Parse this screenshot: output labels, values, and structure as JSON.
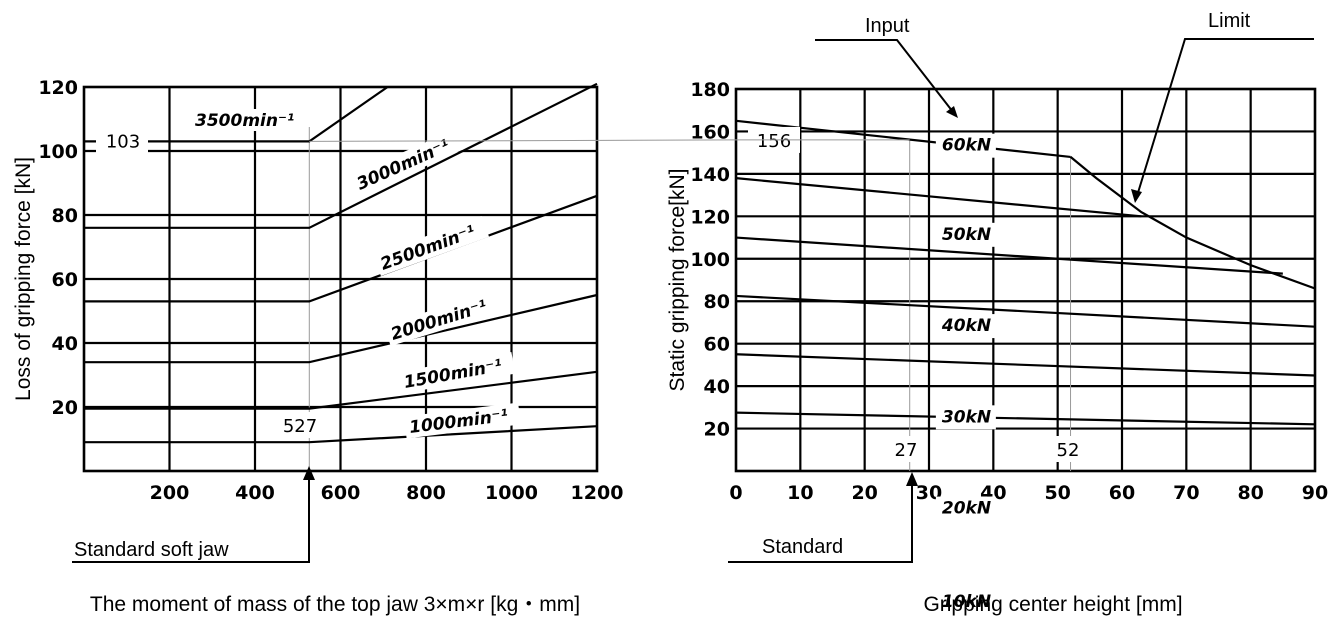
{
  "chart_data": [
    {
      "type": "line",
      "title": "",
      "xlabel": "The moment of mass of the top jaw 3×m×r [kg・mm]",
      "ylabel": "Loss of gripping force [kN]",
      "xlim": [
        0,
        1200
      ],
      "ylim": [
        0,
        120
      ],
      "xticks": [
        200,
        400,
        600,
        800,
        1000,
        1200
      ],
      "yticks": [
        20,
        40,
        60,
        80,
        100,
        120
      ],
      "grid": true,
      "series": [
        {
          "name": "1000min⁻¹",
          "x": [
            0,
            527,
            1200
          ],
          "y": [
            9,
            9,
            14
          ]
        },
        {
          "name": "1500min⁻¹",
          "x": [
            0,
            527,
            1200
          ],
          "y": [
            19.5,
            19.5,
            31
          ]
        },
        {
          "name": "2000min⁻¹",
          "x": [
            0,
            527,
            1200
          ],
          "y": [
            34,
            34,
            55
          ]
        },
        {
          "name": "2500min⁻¹",
          "x": [
            0,
            527,
            1200
          ],
          "y": [
            53,
            53,
            86
          ]
        },
        {
          "name": "3000min⁻¹",
          "x": [
            0,
            527,
            1200
          ],
          "y": [
            76,
            76,
            121
          ]
        },
        {
          "name": "3500min⁻¹",
          "x": [
            0,
            527,
            710
          ],
          "y": [
            103,
            103,
            120
          ]
        }
      ],
      "annotations": {
        "standard_x": 527,
        "standard_x_label": "527",
        "standard_y": 103,
        "standard_y_label": "103",
        "standard_soft_jaw": "Standard soft jaw"
      }
    },
    {
      "type": "line",
      "title": "",
      "xlabel": "Gripping center height [mm]",
      "ylabel": "Static gripping force[kN]",
      "xlim": [
        0,
        90
      ],
      "ylim": [
        0,
        180
      ],
      "xticks": [
        0,
        10,
        20,
        30,
        40,
        50,
        60,
        70,
        80,
        90
      ],
      "yticks": [
        20,
        40,
        60,
        80,
        100,
        120,
        140,
        160,
        180
      ],
      "grid": true,
      "series": [
        {
          "name": "10kN",
          "x": [
            0,
            90
          ],
          "y": [
            27.5,
            22
          ]
        },
        {
          "name": "20kN",
          "x": [
            0,
            90
          ],
          "y": [
            55,
            45
          ]
        },
        {
          "name": "30kN",
          "x": [
            0,
            90
          ],
          "y": [
            82.5,
            68
          ]
        },
        {
          "name": "40kN",
          "x": [
            0,
            85
          ],
          "y": [
            110,
            93
          ]
        },
        {
          "name": "50kN",
          "x": [
            0,
            63
          ],
          "y": [
            138,
            120
          ]
        },
        {
          "name": "60kN",
          "x": [
            0,
            52
          ],
          "y": [
            165,
            148
          ]
        },
        {
          "name": "Limit",
          "x": [
            52,
            56,
            63,
            70,
            80,
            90
          ],
          "y": [
            148,
            138,
            122,
            110,
            97,
            86
          ]
        }
      ],
      "annotations": {
        "input_label": "Input",
        "limit_label": "Limit",
        "standard_label": "Standard",
        "standard_x": 27,
        "standard_x_label": "27",
        "limit_x": 52,
        "limit_x_label": "52",
        "standard_y": 156,
        "standard_y_label": "156"
      }
    }
  ]
}
